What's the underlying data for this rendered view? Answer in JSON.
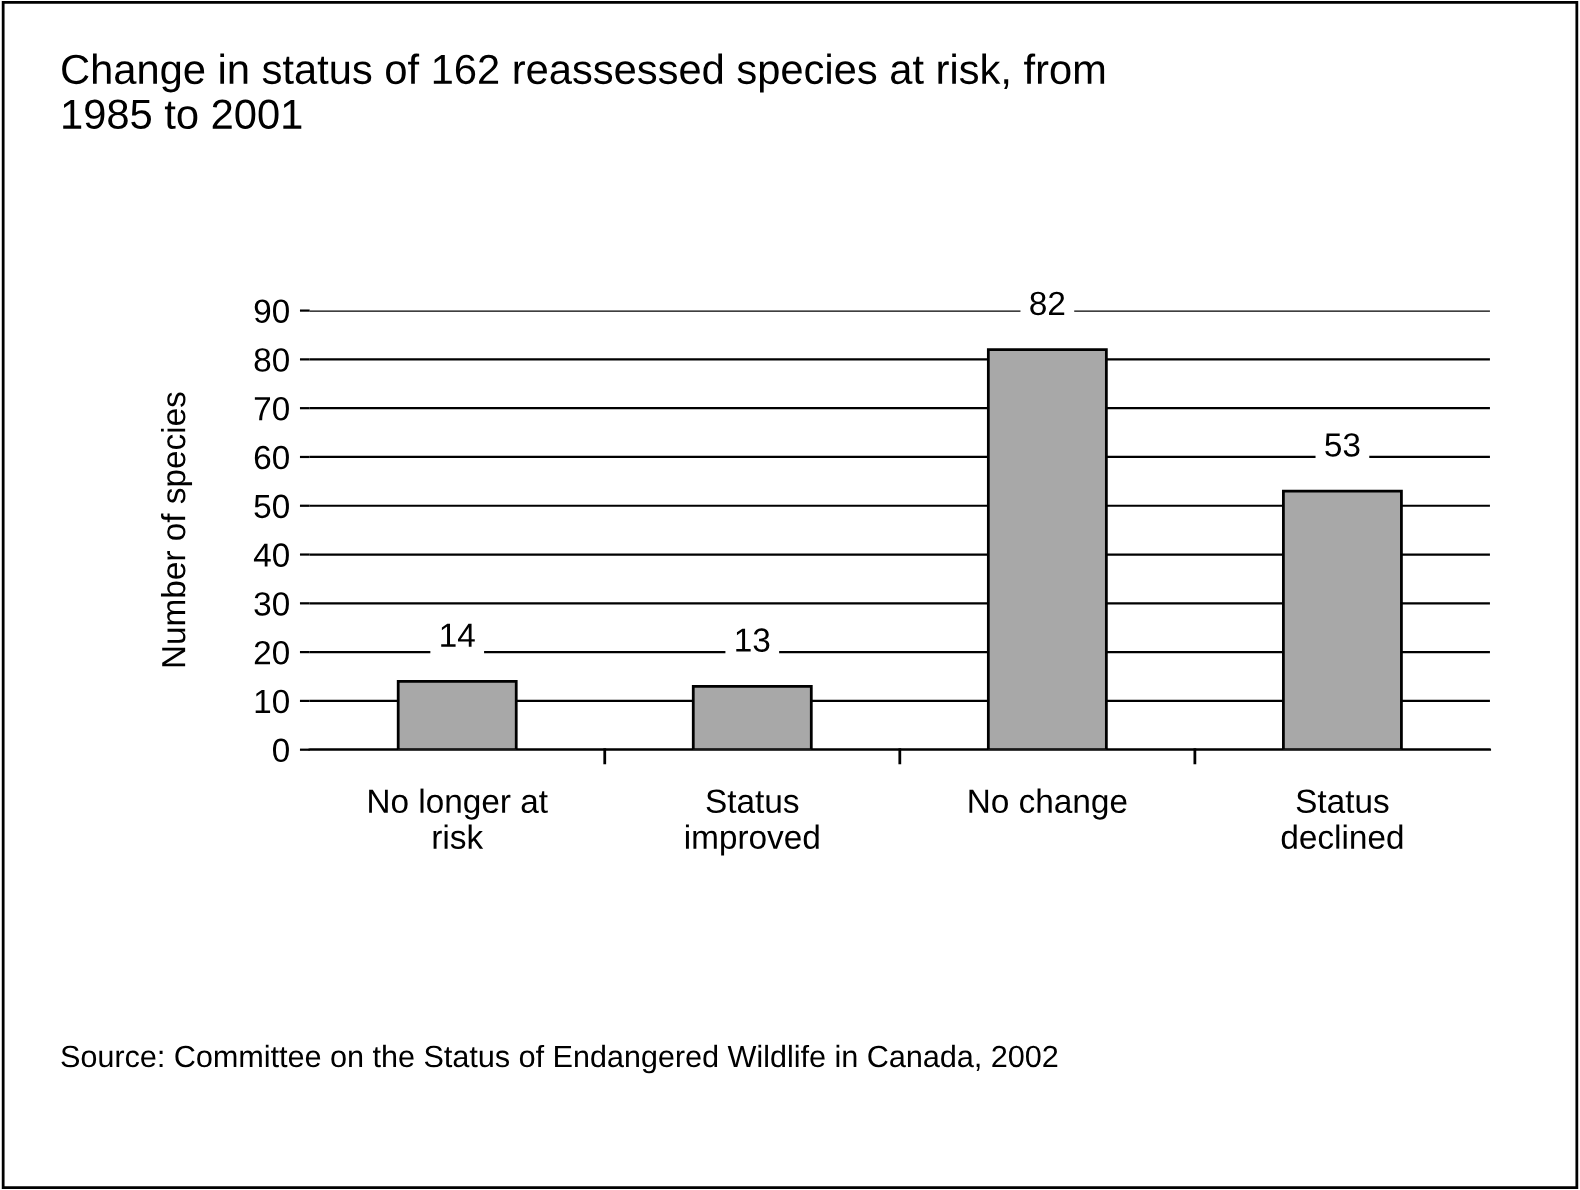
{
  "chart_data": {
    "type": "bar",
    "title": "Change in status of 162 reassessed species at risk, from\n1985 to 2001",
    "ylabel": "Number of species",
    "categories": [
      "No longer at\nrisk",
      "Status\nimproved",
      "No change",
      "Status\ndeclined"
    ],
    "values": [
      14,
      13,
      82,
      53
    ],
    "color": "#a8a8a8",
    "data_labels": true,
    "ylim": [
      0,
      90
    ],
    "yticks": [
      0,
      10,
      20,
      30,
      40,
      50,
      60,
      70,
      80,
      90
    ],
    "grid": "y",
    "annotations": [
      "Source: Committee on the Status of Endangered Wildlife in Canada, 2002"
    ]
  }
}
